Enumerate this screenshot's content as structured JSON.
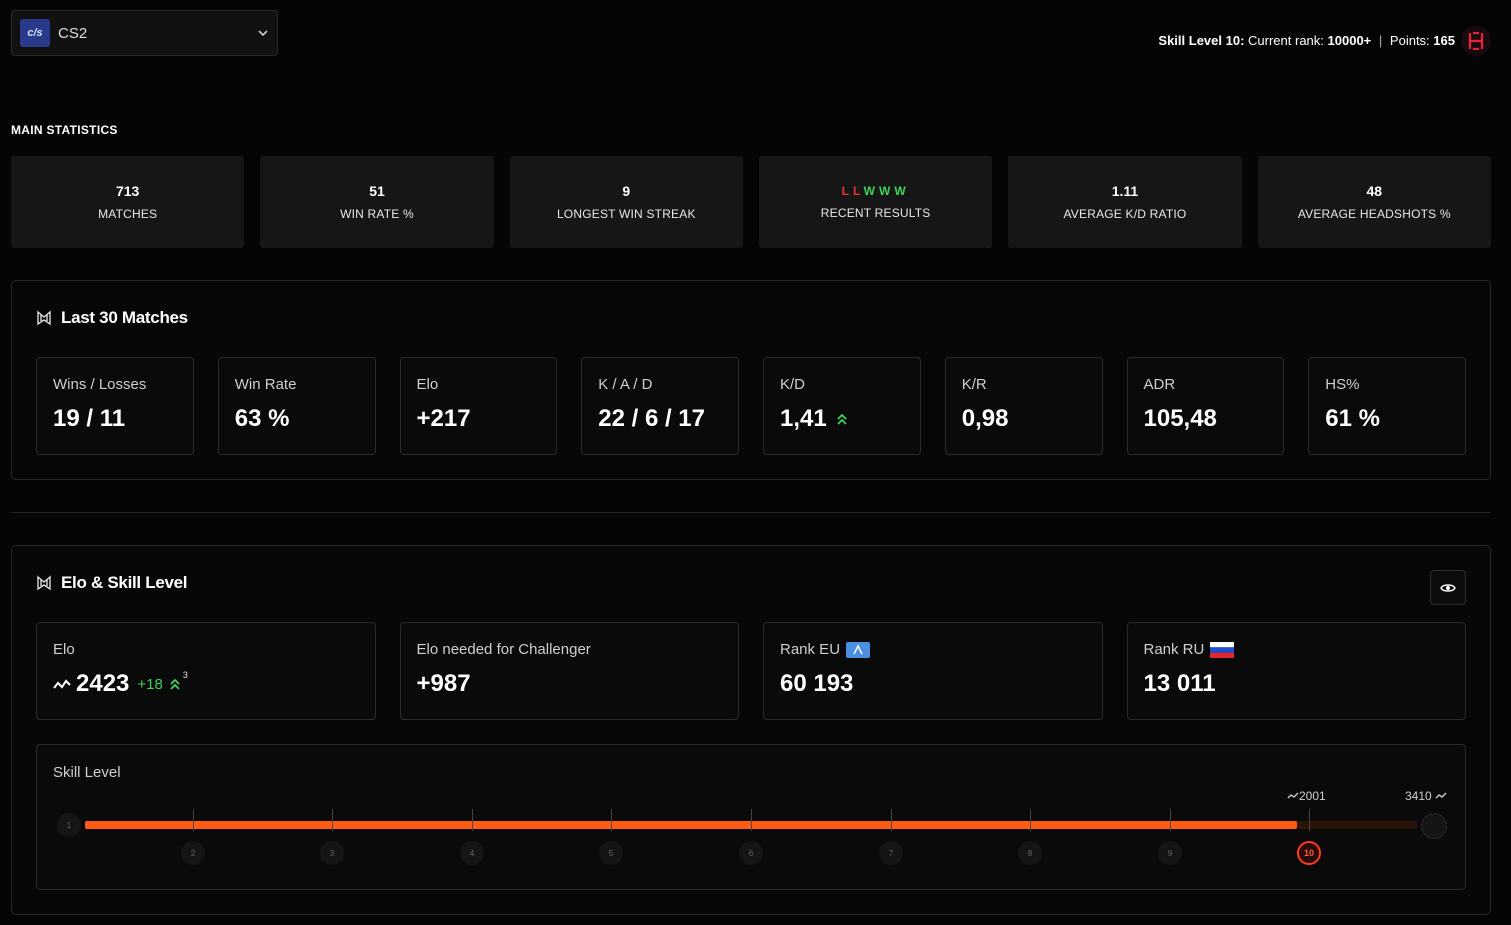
{
  "header": {
    "game": {
      "logo_text": "c/s",
      "name": "CS2"
    },
    "skill_summary": {
      "level_label": "Skill Level 10:",
      "rank_label": "Current rank:",
      "rank_value": "10000+",
      "points_label": "Points:",
      "points_value": "165"
    }
  },
  "main_statistics": {
    "title": "MAIN STATISTICS",
    "items": [
      {
        "value": "713",
        "label": "MATCHES"
      },
      {
        "value": "51",
        "label": "WIN RATE %"
      },
      {
        "value": "9",
        "label": "LONGEST WIN STREAK"
      },
      {
        "value": "",
        "label": "RECENT RESULTS"
      },
      {
        "value": "1.11",
        "label": "AVERAGE K/D RATIO"
      },
      {
        "value": "48",
        "label": "AVERAGE HEADSHOTS %"
      }
    ],
    "recent_results": [
      "L",
      "L",
      "W",
      "W",
      "W"
    ]
  },
  "last30": {
    "title": "Last 30 Matches",
    "cards": [
      {
        "label": "Wins / Losses",
        "value": "19 / 11"
      },
      {
        "label": "Win Rate",
        "value": "63 %"
      },
      {
        "label": "Elo",
        "value": "+217"
      },
      {
        "label": "K / A / D",
        "value": "22 / 6 / 17"
      },
      {
        "label": "K/D",
        "value": "1,41"
      },
      {
        "label": "K/R",
        "value": "0,98"
      },
      {
        "label": "ADR",
        "value": "105,48"
      },
      {
        "label": "HS%",
        "value": "61 %"
      }
    ]
  },
  "elo_skill": {
    "title": "Elo & Skill Level",
    "elo": {
      "label": "Elo",
      "value": "2423",
      "change": "+18",
      "change_sup": "3"
    },
    "challenger": {
      "label": "Elo needed for Challenger",
      "value": "+987"
    },
    "rank_eu": {
      "label": "Rank EU",
      "value": "60 193"
    },
    "rank_ru": {
      "label": "Rank RU",
      "value": "13 011"
    },
    "skill_level": {
      "label": "Skill Level",
      "levels": [
        "1",
        "2",
        "3",
        "4",
        "5",
        "6",
        "7",
        "8",
        "9",
        "10"
      ],
      "current_level": "10",
      "level10_start": "2001",
      "max_elo": "3410",
      "progress_fraction": 0.91
    }
  },
  "colors": {
    "accent": "#ff5a14",
    "win": "#3dd45e",
    "loss": "#e8322c"
  }
}
